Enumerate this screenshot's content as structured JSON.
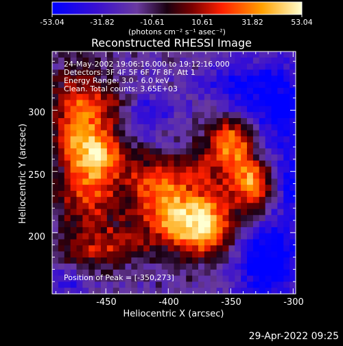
{
  "chart_data": {
    "type": "heatmap",
    "title": "Reconstructed RHESSI Image",
    "xlabel": "Heliocentric X (arcsec)",
    "ylabel": "Heliocentric Y (arcsec)",
    "xlim": [
      -493,
      -298
    ],
    "ylim": [
      150,
      348
    ],
    "xticks": [
      -450,
      -400,
      -350,
      -300
    ],
    "yticks": [
      200,
      250,
      300
    ],
    "colorbar": {
      "min": -53.04,
      "max": 53.04,
      "ticks": [
        "-53.04",
        "-31.82",
        "-10.61",
        "10.61",
        "31.82",
        "53.04"
      ],
      "unit_label": "(photons cm⁻² s⁻¹ asec⁻²)"
    },
    "annotations": [
      "24-May-2002 19:06:16.000 to 19:12:16.000",
      "Detectors: 3F 4F 5F 6F 7F 8F, Att 1",
      "Energy Range: 3.0 - 6.0 keV",
      "Clean.  Total counts: 3.65E+03"
    ],
    "peak_label": "Position of Peak = [-350,273]",
    "peak": [
      -350,
      273
    ],
    "blobs": [
      {
        "x": -470,
        "y": 290,
        "sx": 16,
        "sy": 28,
        "v": 50
      },
      {
        "x": -455,
        "y": 260,
        "sx": 14,
        "sy": 16,
        "v": 46
      },
      {
        "x": -465,
        "y": 225,
        "sx": 18,
        "sy": 14,
        "v": 30
      },
      {
        "x": -440,
        "y": 305,
        "sx": 12,
        "sy": 10,
        "v": 22
      },
      {
        "x": -410,
        "y": 245,
        "sx": 16,
        "sy": 14,
        "v": 34
      },
      {
        "x": -395,
        "y": 215,
        "sx": 22,
        "sy": 18,
        "v": 44
      },
      {
        "x": -370,
        "y": 205,
        "sx": 18,
        "sy": 18,
        "v": 48
      },
      {
        "x": -350,
        "y": 273,
        "sx": 14,
        "sy": 14,
        "v": 53
      },
      {
        "x": -338,
        "y": 245,
        "sx": 14,
        "sy": 12,
        "v": 38
      },
      {
        "x": -330,
        "y": 228,
        "sx": 10,
        "sy": 16,
        "v": 30
      },
      {
        "x": -375,
        "y": 250,
        "sx": 10,
        "sy": 10,
        "v": 20
      },
      {
        "x": -445,
        "y": 190,
        "sx": 18,
        "sy": 12,
        "v": 26
      },
      {
        "x": -470,
        "y": 185,
        "sx": 12,
        "sy": 14,
        "v": 16
      },
      {
        "x": -420,
        "y": 300,
        "sx": 20,
        "sy": 14,
        "v": -22
      },
      {
        "x": -320,
        "y": 180,
        "sx": 20,
        "sy": 26,
        "v": -44
      },
      {
        "x": -310,
        "y": 300,
        "sx": 18,
        "sy": 30,
        "v": -34
      },
      {
        "x": -345,
        "y": 320,
        "sx": 20,
        "sy": 14,
        "v": -28
      },
      {
        "x": -480,
        "y": 160,
        "sx": 12,
        "sy": 10,
        "v": -20
      },
      {
        "x": -300,
        "y": 240,
        "sx": 8,
        "sy": 16,
        "v": -30
      }
    ]
  },
  "footer": {
    "timestamp": "29-Apr-2022 09:25"
  }
}
